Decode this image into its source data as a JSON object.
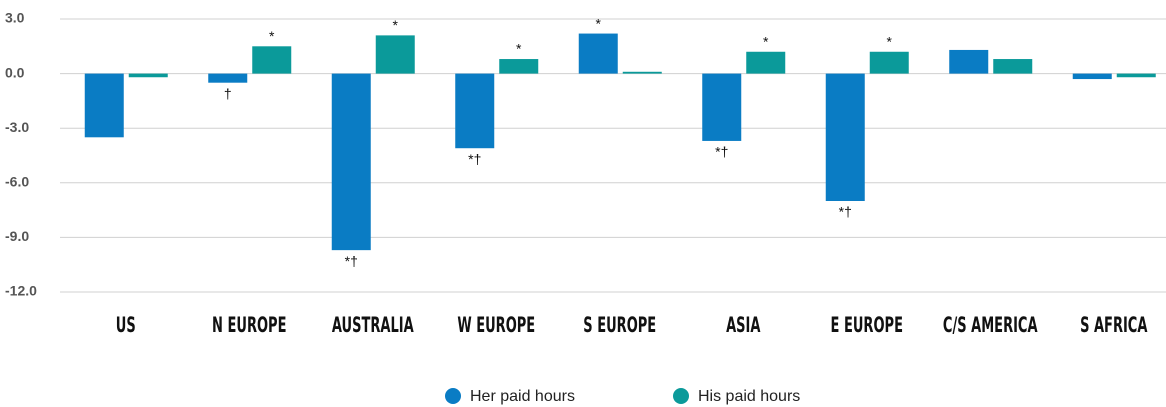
{
  "chart_data": {
    "type": "bar",
    "categories": [
      "US",
      "N EUROPE",
      "AUSTRALIA",
      "W EUROPE",
      "S EUROPE",
      "ASIA",
      "E EUROPE",
      "C/S AMERICA",
      "S AFRICA"
    ],
    "series": [
      {
        "name": "Her paid hours",
        "color": "#0a7cc4",
        "values": [
          -3.5,
          -0.5,
          -9.7,
          -4.1,
          2.2,
          -3.7,
          -7.0,
          1.3,
          -0.3
        ],
        "annotations": [
          null,
          "†",
          "*†",
          "*†",
          "*",
          "*†",
          "*†",
          null,
          null
        ]
      },
      {
        "name": "His paid hours",
        "color": "#0b9a9a",
        "values": [
          -0.2,
          1.5,
          2.1,
          0.8,
          0.1,
          1.2,
          1.2,
          0.8,
          -0.2
        ],
        "annotations": [
          null,
          "*",
          "*",
          "*",
          null,
          "*",
          "*",
          null,
          null
        ]
      }
    ],
    "ylim": [
      -12,
      3
    ],
    "yticks": [
      {
        "value": 3,
        "label": "3.0"
      },
      {
        "value": 0,
        "label": "0.0"
      },
      {
        "value": -3,
        "label": "-3.0"
      },
      {
        "value": -6,
        "label": "-6.0"
      },
      {
        "value": -9,
        "label": "-9.0"
      },
      {
        "value": -12,
        "label": "-12.0"
      }
    ],
    "grid": true
  }
}
